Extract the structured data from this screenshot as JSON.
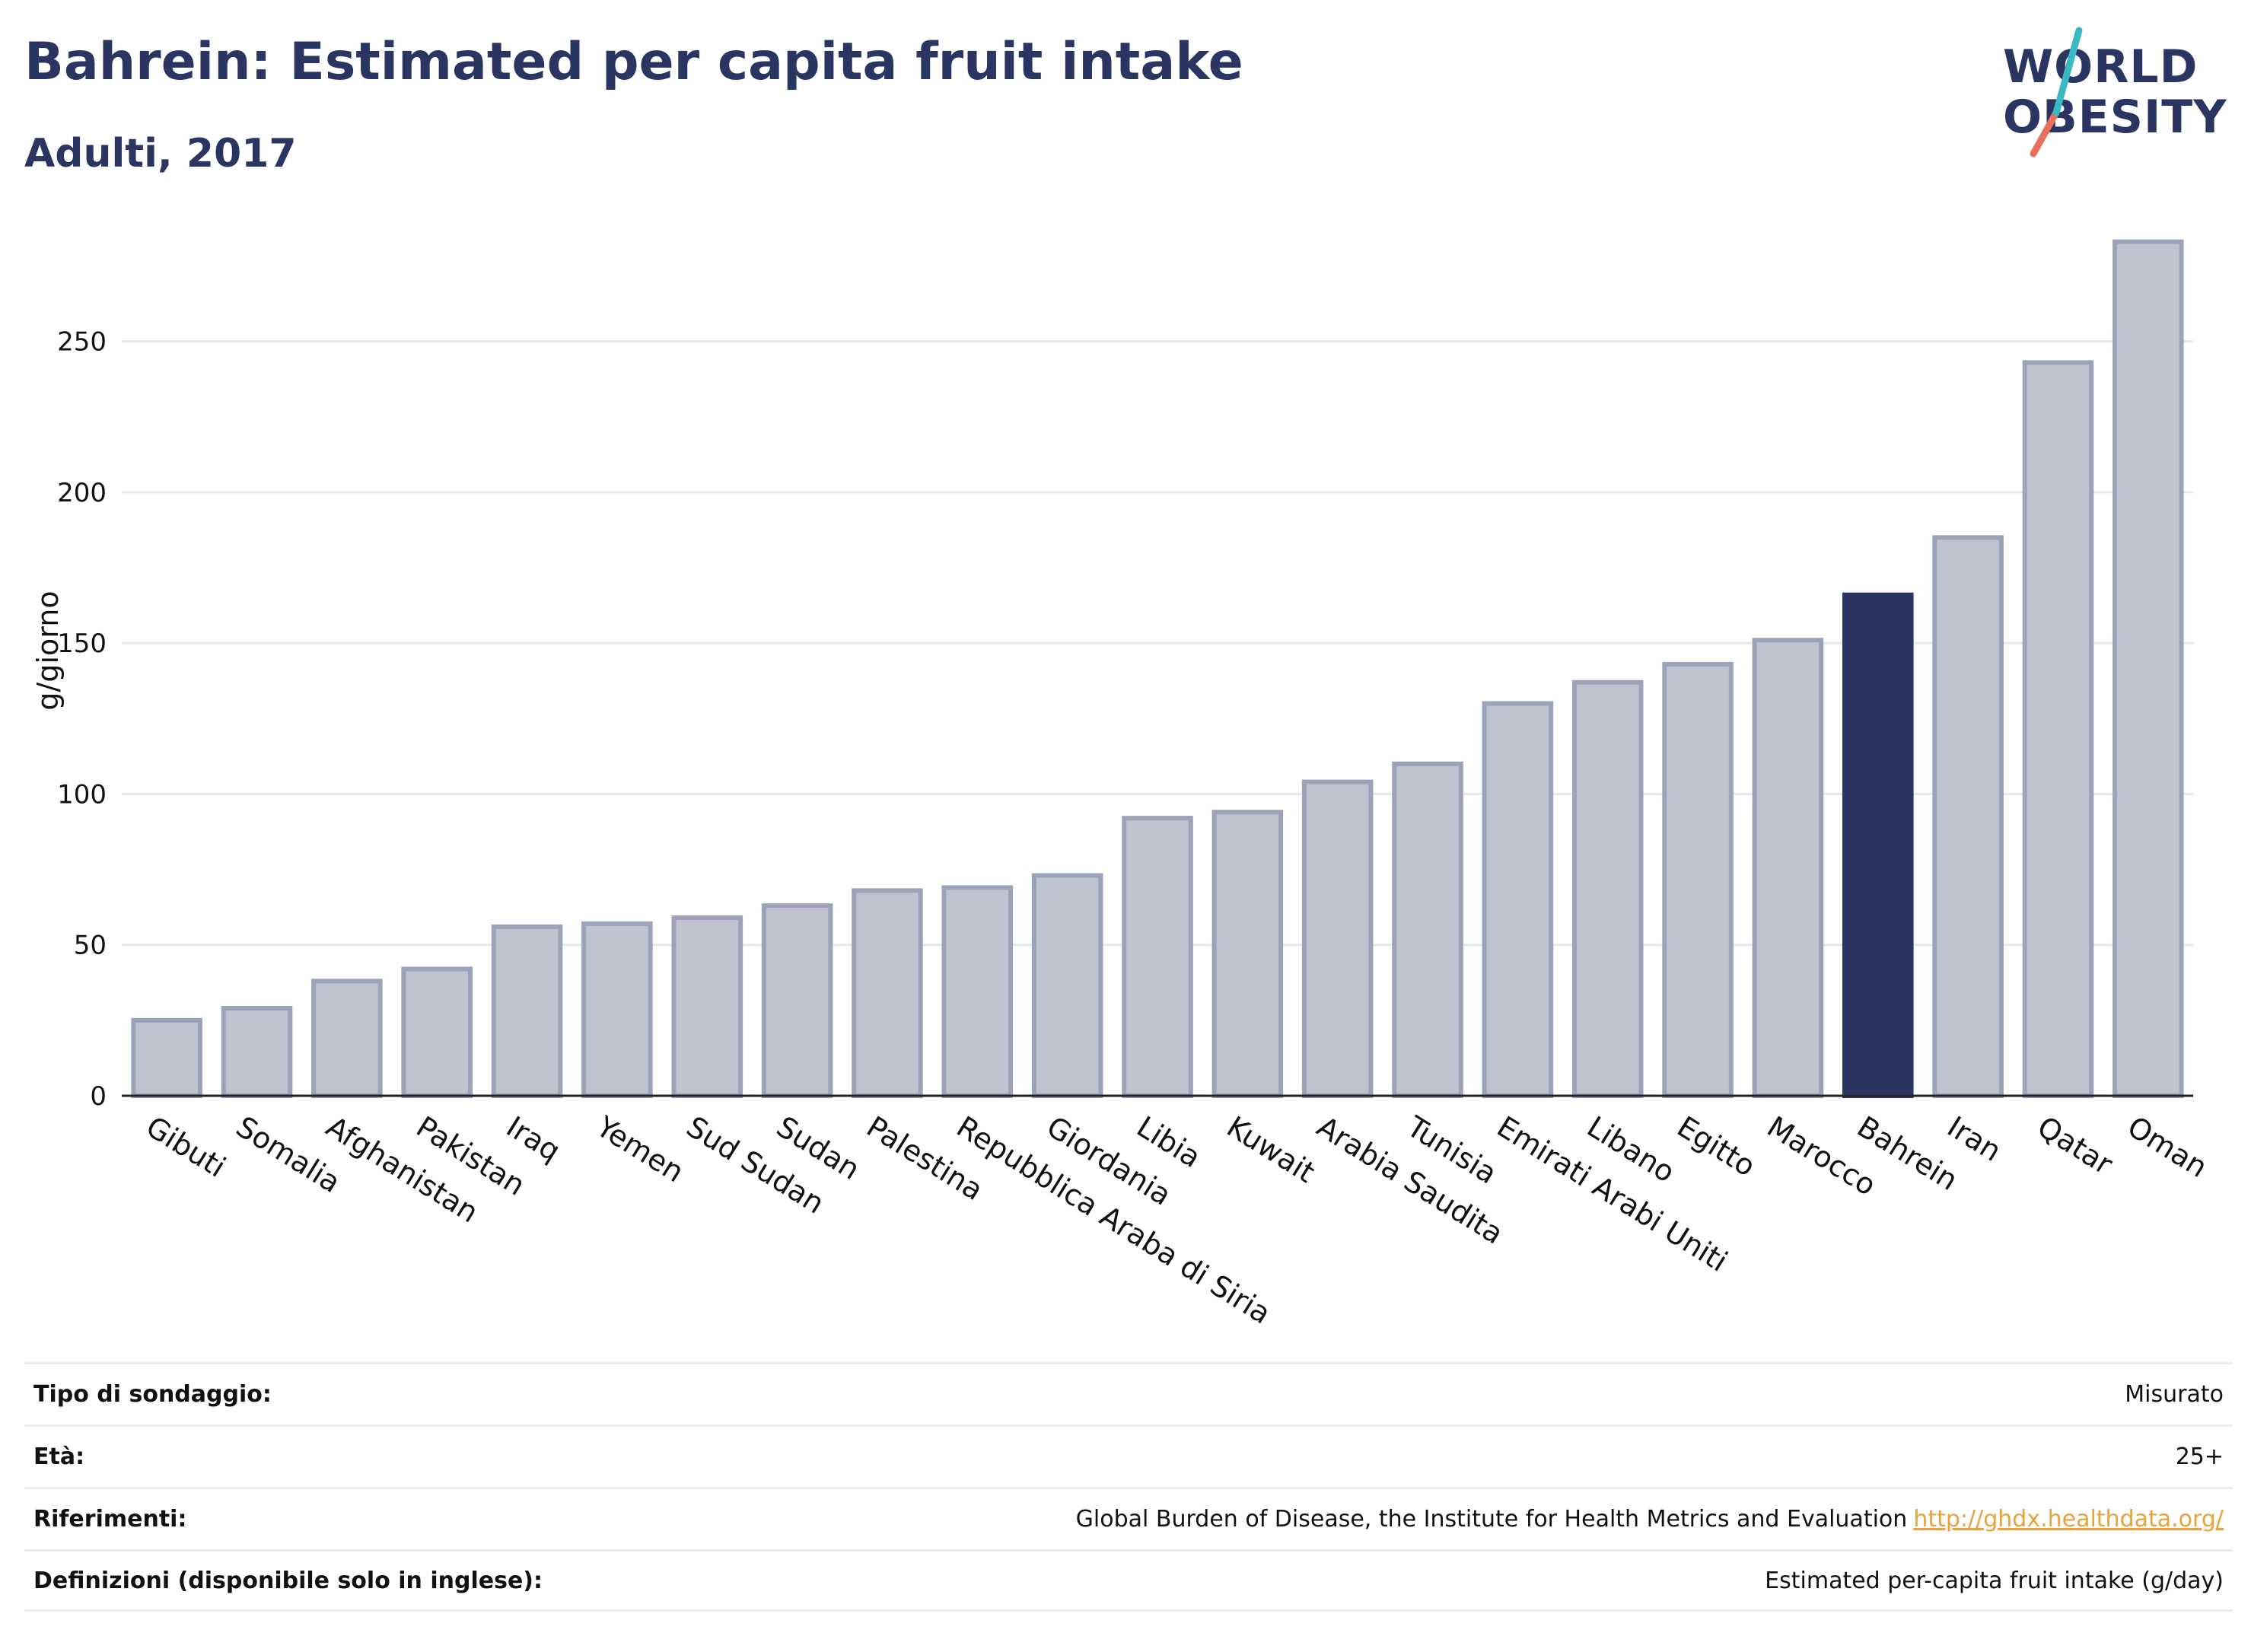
{
  "header": {
    "title": "Bahrein: Estimated per capita fruit intake",
    "subtitle": "Adulti, 2017"
  },
  "logo": {
    "line1": "WORLD",
    "line2": "OBESITY"
  },
  "colors": {
    "bar": "#bfc3d0",
    "bar_border": "#9ca2b8",
    "highlight": "#2a3661",
    "text": "#2a3661"
  },
  "chart_data": {
    "type": "bar",
    "ylabel": "g/giorno",
    "ylim": [
      0,
      290
    ],
    "yticks": [
      0,
      50,
      100,
      150,
      200,
      250
    ],
    "categories": [
      "Gibuti",
      "Somalia",
      "Afghanistan",
      "Pakistan",
      "Iraq",
      "Yemen",
      "Sud Sudan",
      "Sudan",
      "Palestina",
      "Repubblica Araba di Siria",
      "Giordania",
      "Libia",
      "Kuwait",
      "Arabia Saudita",
      "Tunisia",
      "Emirati Arabi Uniti",
      "Libano",
      "Egitto",
      "Marocco",
      "Bahrein",
      "Iran",
      "Qatar",
      "Oman"
    ],
    "values": [
      25,
      29,
      38,
      42,
      56,
      57,
      59,
      63,
      68,
      69,
      73,
      92,
      94,
      104,
      110,
      130,
      137,
      143,
      151,
      166,
      185,
      243,
      283
    ],
    "highlight": "Bahrein",
    "grid": true
  },
  "meta": {
    "rows": [
      {
        "label": "Tipo di sondaggio:",
        "value": "Misurato"
      },
      {
        "label": "Età:",
        "value": "25+"
      },
      {
        "label": "Riferimenti:",
        "value": "Global Burden of Disease, the Institute for Health Metrics and Evaluation",
        "link": "http://ghdx.healthdata.org/"
      },
      {
        "label": "Definizioni (disponibile solo in inglese):",
        "value": "Estimated per-capita fruit intake (g/day)"
      }
    ]
  }
}
